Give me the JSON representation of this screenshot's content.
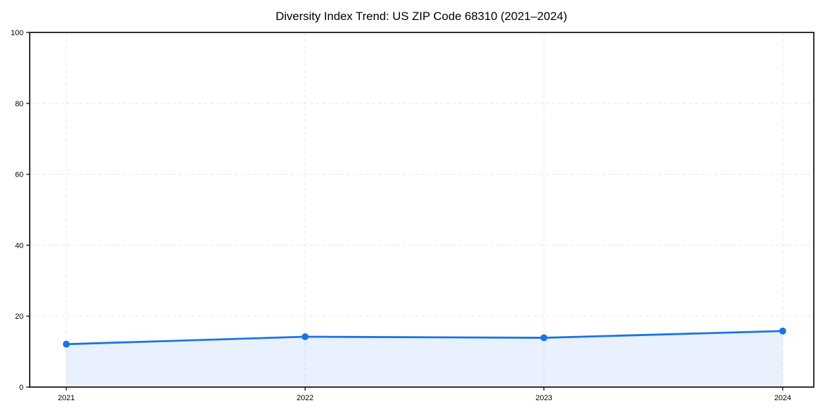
{
  "title": "Diversity Index Trend: US ZIP Code 68310 (2021–2024)",
  "colors": {
    "line": "#1a73e8",
    "marker": "#1a73e8",
    "area_fill": "rgba(26,115,232,0.10)",
    "grid": "#e7e7e7",
    "axis": "#1a1a1a",
    "text": "#000000",
    "background": "#ffffff"
  },
  "chart_data": {
    "type": "area",
    "title": "Diversity Index Trend: US ZIP Code 68310 (2021–2024)",
    "x": [
      2021,
      2022,
      2023,
      2024
    ],
    "x_tick_labels": [
      "2021",
      "2022",
      "2023",
      "2024"
    ],
    "series": [
      {
        "name": "Diversity Index",
        "values": [
          12.1,
          14.2,
          13.9,
          15.8
        ]
      }
    ],
    "xlabel": "",
    "ylabel": "",
    "ylim": [
      0,
      100
    ],
    "yticks": [
      0,
      20,
      40,
      60,
      80,
      100
    ],
    "grid": true,
    "grid_style": "dashed",
    "legend": false,
    "marker": "circle",
    "fill_to_zero": true
  }
}
